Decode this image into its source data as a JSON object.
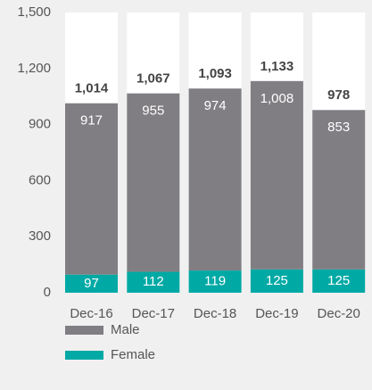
{
  "chart_data": {
    "type": "stacked_bar",
    "categories": [
      "Dec-16",
      "Dec-17",
      "Dec-18",
      "Dec-19",
      "Dec-20"
    ],
    "series": [
      {
        "name": "Female",
        "color": "#00a9a4",
        "values": [
          97,
          112,
          119,
          125,
          125
        ]
      },
      {
        "name": "Male",
        "color": "#807e82",
        "values": [
          917,
          955,
          974,
          1008,
          853
        ],
        "value_labels": [
          "917",
          "955",
          "974",
          "1,008",
          "853"
        ]
      }
    ],
    "total_labels": [
      "1,014",
      "1,067",
      "1,093",
      "1,133",
      "978"
    ],
    "ylim": [
      0,
      1500
    ],
    "yticks": [
      0,
      300,
      600,
      900,
      {
        "value": 1200,
        "label": "1,200"
      },
      {
        "value": 1500,
        "label": "1,500"
      }
    ],
    "legend": "bottom-left"
  }
}
